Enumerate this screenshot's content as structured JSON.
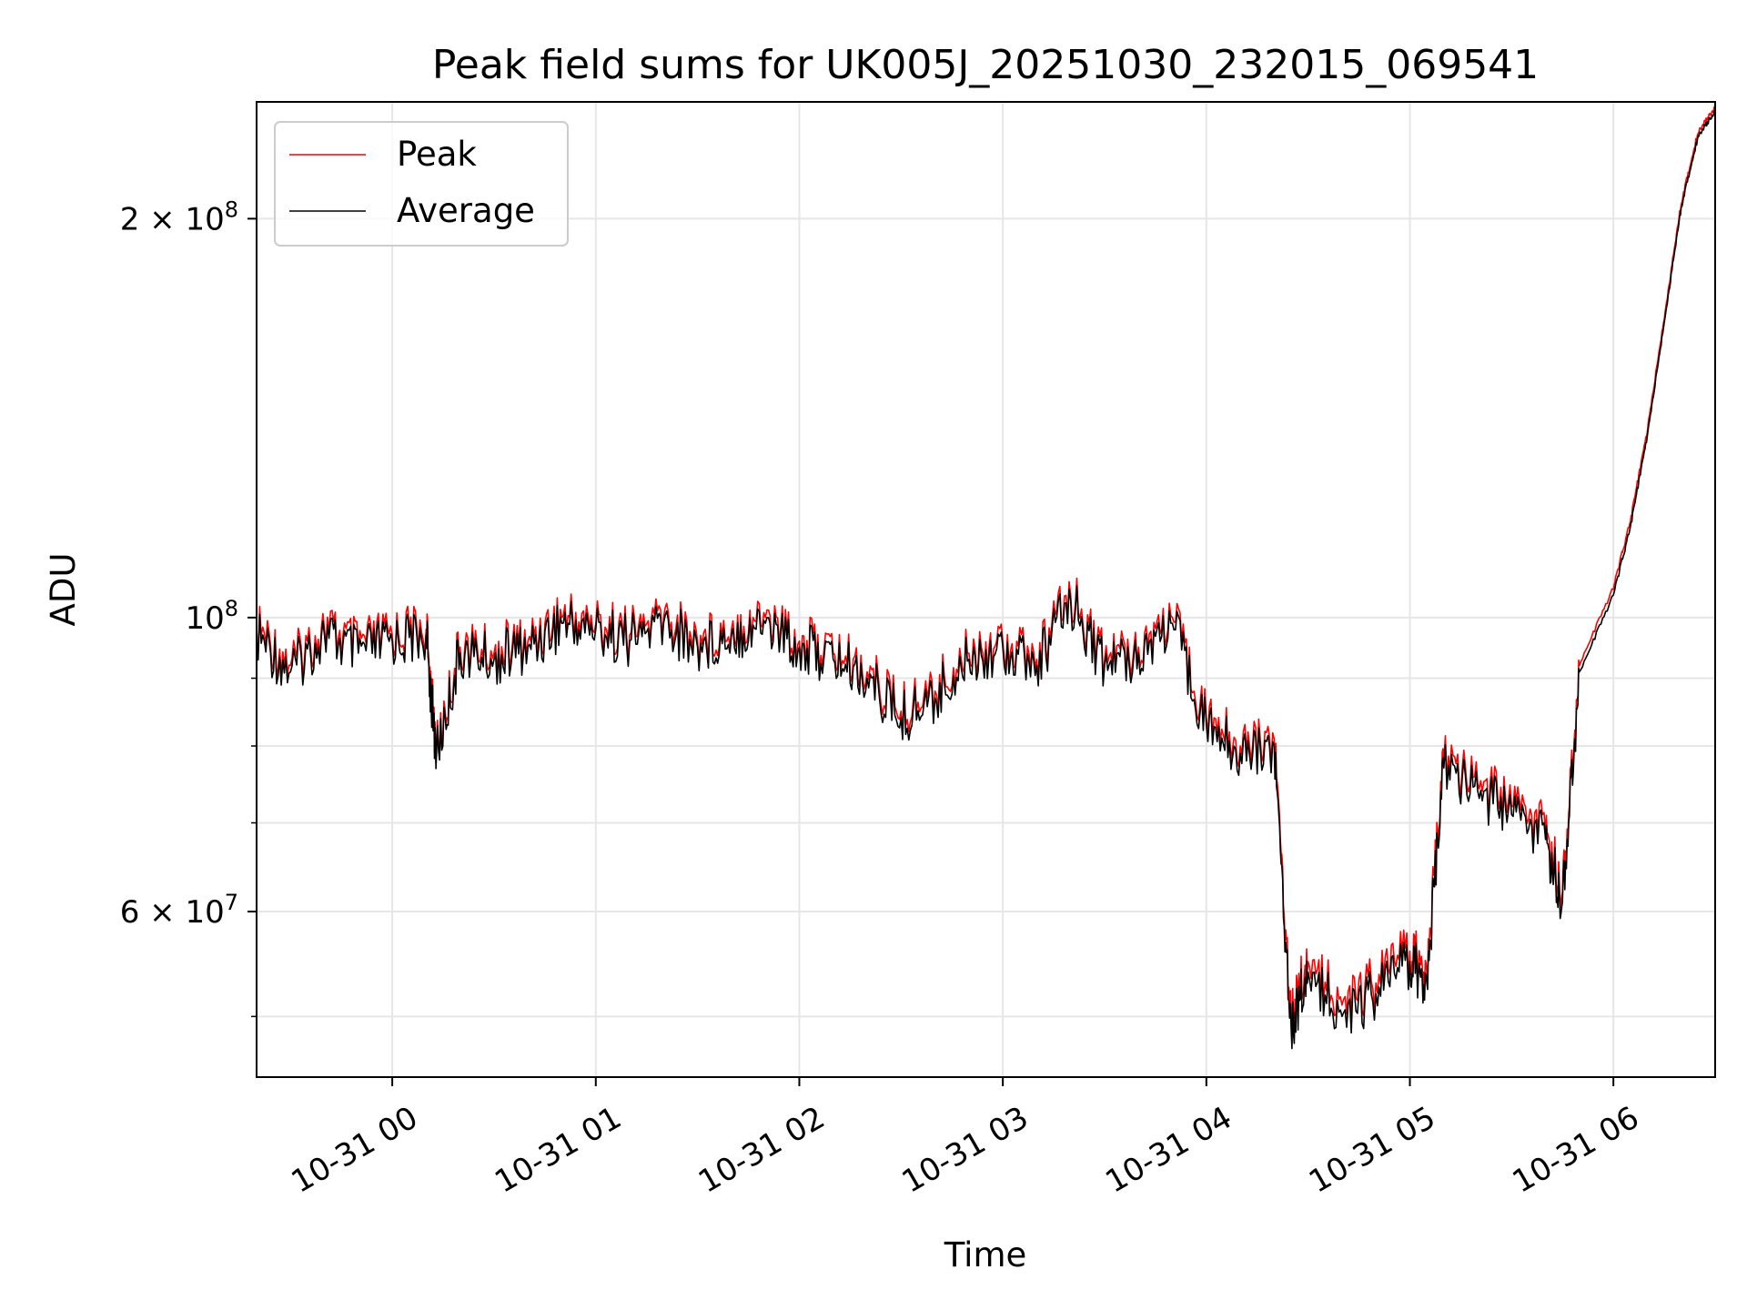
{
  "chart_data": {
    "type": "line",
    "title": "Peak field sums for UK005J_20251030_232015_069541",
    "xlabel": "Time",
    "ylabel": "ADU",
    "y_scale": "log",
    "ylim": [
      45000000,
      245000000
    ],
    "xlim": [
      "2025-10-30 23:20",
      "2025-10-31 06:30"
    ],
    "x_ticks": [
      {
        "value": "2025-10-31 00:00",
        "label": "10-31 00"
      },
      {
        "value": "2025-10-31 01:00",
        "label": "10-31 01"
      },
      {
        "value": "2025-10-31 02:00",
        "label": "10-31 02"
      },
      {
        "value": "2025-10-31 03:00",
        "label": "10-31 03"
      },
      {
        "value": "2025-10-31 04:00",
        "label": "10-31 04"
      },
      {
        "value": "2025-10-31 05:00",
        "label": "10-31 05"
      },
      {
        "value": "2025-10-31 06:00",
        "label": "10-31 06"
      }
    ],
    "y_major_ticks": [
      {
        "value": 60000000,
        "mantissa": "6",
        "exp": "7"
      },
      {
        "value": 100000000,
        "mantissa": "",
        "exp": "8"
      },
      {
        "value": 200000000,
        "mantissa": "2",
        "exp": "8"
      }
    ],
    "y_minor_ticks": [
      50000000,
      70000000,
      80000000,
      90000000
    ],
    "grid": true,
    "legend_position": "top-left",
    "colors": {
      "peak": "#ff0000",
      "average": "#000000",
      "grid": "#e6e6e6"
    },
    "series": [
      {
        "name": "Peak",
        "x": [
          "2025-10-30 23:20",
          "2025-10-30 23:30",
          "2025-10-30 23:40",
          "2025-10-30 23:50",
          "2025-10-31 00:00",
          "2025-10-31 00:10",
          "2025-10-31 00:13",
          "2025-10-31 00:20",
          "2025-10-31 00:30",
          "2025-10-31 00:40",
          "2025-10-31 00:50",
          "2025-10-31 01:00",
          "2025-10-31 01:10",
          "2025-10-31 01:20",
          "2025-10-31 01:30",
          "2025-10-31 01:40",
          "2025-10-31 01:50",
          "2025-10-31 02:00",
          "2025-10-31 02:10",
          "2025-10-31 02:20",
          "2025-10-31 02:30",
          "2025-10-31 02:40",
          "2025-10-31 02:50",
          "2025-10-31 03:00",
          "2025-10-31 03:10",
          "2025-10-31 03:20",
          "2025-10-31 03:30",
          "2025-10-31 03:40",
          "2025-10-31 03:50",
          "2025-10-31 04:00",
          "2025-10-31 04:10",
          "2025-10-31 04:20",
          "2025-10-31 04:25",
          "2025-10-31 04:30",
          "2025-10-31 04:40",
          "2025-10-31 04:50",
          "2025-10-31 05:00",
          "2025-10-31 05:05",
          "2025-10-31 05:10",
          "2025-10-31 05:20",
          "2025-10-31 05:30",
          "2025-10-31 05:40",
          "2025-10-31 05:45",
          "2025-10-31 05:50",
          "2025-10-31 06:00",
          "2025-10-31 06:05",
          "2025-10-31 06:10",
          "2025-10-31 06:15",
          "2025-10-31 06:20",
          "2025-10-31 06:25",
          "2025-10-31 06:30"
        ],
        "y": [
          98000000,
          92000000,
          98000000,
          95000000,
          97000000,
          98000000,
          79000000,
          95000000,
          94000000,
          96000000,
          100000000,
          99000000,
          97000000,
          100000000,
          96000000,
          98000000,
          100000000,
          96000000,
          94000000,
          91000000,
          85000000,
          88000000,
          94000000,
          96000000,
          93000000,
          104000000,
          93000000,
          95000000,
          100000000,
          84000000,
          80000000,
          81000000,
          50000000,
          55000000,
          51000000,
          53000000,
          56000000,
          54000000,
          78000000,
          75000000,
          72000000,
          69000000,
          62000000,
          92000000,
          105000000,
          118000000,
          138000000,
          168000000,
          205000000,
          232000000,
          242000000
        ]
      },
      {
        "name": "Average",
        "x": [
          "2025-10-30 23:20",
          "2025-10-30 23:30",
          "2025-10-30 23:40",
          "2025-10-30 23:50",
          "2025-10-31 00:00",
          "2025-10-31 00:10",
          "2025-10-31 00:13",
          "2025-10-31 00:20",
          "2025-10-31 00:30",
          "2025-10-31 00:40",
          "2025-10-31 00:50",
          "2025-10-31 01:00",
          "2025-10-31 01:10",
          "2025-10-31 01:20",
          "2025-10-31 01:30",
          "2025-10-31 01:40",
          "2025-10-31 01:50",
          "2025-10-31 02:00",
          "2025-10-31 02:10",
          "2025-10-31 02:20",
          "2025-10-31 02:30",
          "2025-10-31 02:40",
          "2025-10-31 02:50",
          "2025-10-31 03:00",
          "2025-10-31 03:10",
          "2025-10-31 03:20",
          "2025-10-31 03:30",
          "2025-10-31 03:40",
          "2025-10-31 03:50",
          "2025-10-31 04:00",
          "2025-10-31 04:10",
          "2025-10-31 04:20",
          "2025-10-31 04:25",
          "2025-10-31 04:30",
          "2025-10-31 04:40",
          "2025-10-31 04:50",
          "2025-10-31 05:00",
          "2025-10-31 05:05",
          "2025-10-31 05:10",
          "2025-10-31 05:20",
          "2025-10-31 05:30",
          "2025-10-31 05:40",
          "2025-10-31 05:45",
          "2025-10-31 05:50",
          "2025-10-31 06:00",
          "2025-10-31 06:05",
          "2025-10-31 06:10",
          "2025-10-31 06:15",
          "2025-10-31 06:20",
          "2025-10-31 06:25",
          "2025-10-31 06:30"
        ],
        "y": [
          97000000,
          91000000,
          97000000,
          94000000,
          96000000,
          97000000,
          78500000,
          94000000,
          93000000,
          95000000,
          99000000,
          98000000,
          96000000,
          99000000,
          95000000,
          97000000,
          99000000,
          95000000,
          93000000,
          90000000,
          84000000,
          87000000,
          93000000,
          95000000,
          92000000,
          103000000,
          92000000,
          94000000,
          99000000,
          83000000,
          79000000,
          80000000,
          49000000,
          54000000,
          50000000,
          52000000,
          55000000,
          53000000,
          77000000,
          74000000,
          71000000,
          68000000,
          61000000,
          91000000,
          104000000,
          117000000,
          137000000,
          167000000,
          204000000,
          231000000,
          241000000
        ]
      }
    ]
  }
}
